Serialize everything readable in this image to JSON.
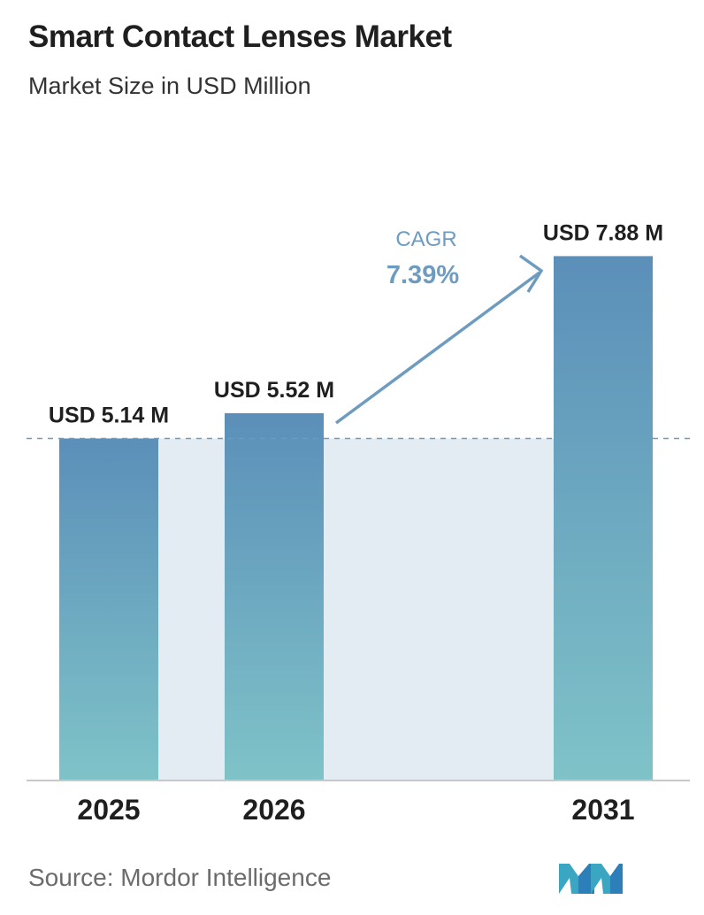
{
  "header": {
    "title": "Smart Contact Lenses Market",
    "subtitle": "Market Size in USD Million"
  },
  "chart_data": {
    "type": "bar",
    "categories": [
      "2025",
      "2026",
      "2031"
    ],
    "values": [
      5.14,
      5.52,
      7.88
    ],
    "data_labels": [
      "USD 5.14 M",
      "USD 5.52 M",
      "USD 7.88 M"
    ],
    "ylim": [
      0,
      8.2
    ],
    "grid": false,
    "reference_line": {
      "value": 5.14,
      "style": "dashed"
    },
    "annotation": {
      "label": "CAGR",
      "value": "7.39%"
    },
    "colors": {
      "bar_top": "#5b8fb9",
      "bar_bottom": "#7fc3c8",
      "band": "#e3ebf3",
      "arrow": "#6e9cc0",
      "baseline": "#c8c8c8"
    }
  },
  "footer": {
    "source": "Source:  Mordor Intelligence",
    "logo_icon": "mordor-intelligence-logo-icon"
  }
}
